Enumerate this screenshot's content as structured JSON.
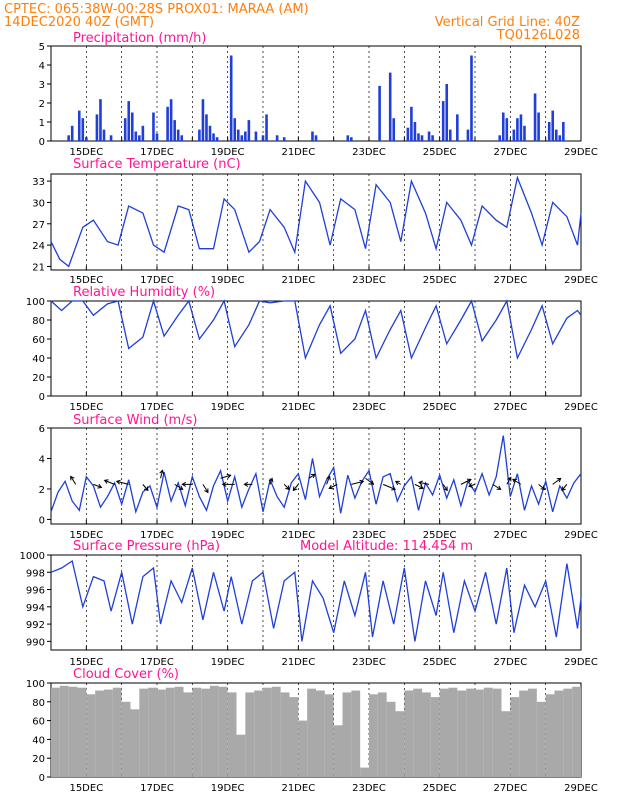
{
  "header": {
    "line1_left": "CPTEC:   065:38W-00:28S   PROX01: MARAA (AM)",
    "line2_left": "14DEC2020 40Z (GMT)",
    "line2_right": "Vertical Grid Line: 40Z",
    "line3_right": "TQ0126L028"
  },
  "colors": {
    "header": "#ff7f0e",
    "panel_title": "#ff1493",
    "series": "#1f3fd8",
    "cloud": "#a9a9a9",
    "arrows": "#000000"
  },
  "chart_data": [
    {
      "type": "bar",
      "title": "Precipitation (mm/h)",
      "xlabel": "",
      "ylabel": "",
      "x_ticks": [
        "15DEC",
        "17DEC",
        "19DEC",
        "21DEC",
        "23DEC",
        "25DEC",
        "27DEC",
        "29DEC"
      ],
      "y_ticks": [
        "0",
        "1",
        "2",
        "3",
        "4",
        "5"
      ],
      "ylim": [
        0,
        5
      ],
      "grid": "vertical dashed",
      "x": [
        14.5,
        14.6,
        14.8,
        14.9,
        15.0,
        15.3,
        15.4,
        15.5,
        15.7,
        16.1,
        16.2,
        16.3,
        16.4,
        16.5,
        16.6,
        16.9,
        17.0,
        17.3,
        17.4,
        17.5,
        17.6,
        17.7,
        18.2,
        18.3,
        18.4,
        18.5,
        18.6,
        18.7,
        19.1,
        19.2,
        19.3,
        19.4,
        19.5,
        19.6,
        19.8,
        20.0,
        20.1,
        20.4,
        20.6,
        21.4,
        21.5,
        22.4,
        22.5,
        23.3,
        23.6,
        23.7,
        24.1,
        24.2,
        24.3,
        24.4,
        24.5,
        24.7,
        24.8,
        25.1,
        25.2,
        25.3,
        25.5,
        25.8,
        25.9,
        26.7,
        26.8,
        26.9,
        27.1,
        27.2,
        27.3,
        27.4,
        27.7,
        27.8,
        28.1,
        28.2,
        28.3,
        28.4,
        28.5
      ],
      "values": [
        0.3,
        0.8,
        1.6,
        1.2,
        0.2,
        1.4,
        2.2,
        0.6,
        0.3,
        1.2,
        2.1,
        1.5,
        0.5,
        0.3,
        0.8,
        1.5,
        0.4,
        1.8,
        2.2,
        1.1,
        0.6,
        0.3,
        0.6,
        2.2,
        1.4,
        0.8,
        0.4,
        0.2,
        4.5,
        1.2,
        0.6,
        0.3,
        0.5,
        1.1,
        0.5,
        0.3,
        1.4,
        0.3,
        0.2,
        0.5,
        0.3,
        0.3,
        0.2,
        2.9,
        3.6,
        1.2,
        0.7,
        1.8,
        1.0,
        0.4,
        0.3,
        0.5,
        0.3,
        2.1,
        3.0,
        0.6,
        1.4,
        0.6,
        4.5,
        0.3,
        1.5,
        1.2,
        0.6,
        1.2,
        1.4,
        0.8,
        2.5,
        1.5,
        1.0,
        1.6,
        0.6,
        0.3,
        1.0
      ]
    },
    {
      "type": "line",
      "title": "Surface Temperature (nC)",
      "xlabel": "",
      "ylabel": "",
      "x_ticks": [
        "15DEC",
        "17DEC",
        "19DEC",
        "21DEC",
        "23DEC",
        "25DEC",
        "27DEC",
        "29DEC"
      ],
      "y_ticks": [
        "21",
        "24",
        "27",
        "30",
        "33"
      ],
      "ylim": [
        20.5,
        34
      ],
      "grid": "vertical dashed",
      "x": [
        14.0,
        14.25,
        14.5,
        14.9,
        15.2,
        15.6,
        15.9,
        16.2,
        16.6,
        16.9,
        17.2,
        17.6,
        17.9,
        18.2,
        18.6,
        18.9,
        19.2,
        19.6,
        19.9,
        20.2,
        20.6,
        20.9,
        21.2,
        21.6,
        21.9,
        22.2,
        22.6,
        22.9,
        23.2,
        23.6,
        23.9,
        24.2,
        24.6,
        24.9,
        25.2,
        25.6,
        25.9,
        26.2,
        26.6,
        26.9,
        27.2,
        27.6,
        27.9,
        28.2,
        28.6,
        28.9,
        29.0
      ],
      "values": [
        24.5,
        22.0,
        21.0,
        26.5,
        27.5,
        24.5,
        24.0,
        29.5,
        28.5,
        24.0,
        23.0,
        29.5,
        29.0,
        23.5,
        23.5,
        30.5,
        29.0,
        23.0,
        24.5,
        29.0,
        26.5,
        23.0,
        33.0,
        30.0,
        24.0,
        30.5,
        29.0,
        23.5,
        32.5,
        30.0,
        24.5,
        33.0,
        28.5,
        23.5,
        30.0,
        27.5,
        24.0,
        29.5,
        27.5,
        26.5,
        33.5,
        28.5,
        24.0,
        30.0,
        28.0,
        24.0,
        28.5
      ]
    },
    {
      "type": "line",
      "title": "Relative Humidity (%)",
      "xlabel": "",
      "ylabel": "",
      "x_ticks": [
        "15DEC",
        "17DEC",
        "19DEC",
        "21DEC",
        "23DEC",
        "25DEC",
        "27DEC",
        "29DEC"
      ],
      "y_ticks": [
        "0",
        "20",
        "40",
        "60",
        "80",
        "100"
      ],
      "ylim": [
        0,
        100
      ],
      "grid": "vertical dashed",
      "x": [
        14.0,
        14.3,
        14.6,
        14.9,
        15.2,
        15.6,
        15.9,
        16.2,
        16.6,
        16.9,
        17.2,
        17.6,
        17.9,
        18.2,
        18.6,
        18.9,
        19.2,
        19.6,
        19.9,
        20.2,
        20.6,
        20.9,
        21.2,
        21.6,
        21.9,
        22.2,
        22.6,
        22.9,
        23.2,
        23.6,
        23.9,
        24.2,
        24.6,
        24.9,
        25.2,
        25.6,
        25.9,
        26.2,
        26.6,
        26.9,
        27.2,
        27.6,
        27.9,
        28.2,
        28.6,
        28.9,
        29.0
      ],
      "values": [
        100,
        90,
        100,
        100,
        85,
        97,
        100,
        50,
        62,
        100,
        63,
        85,
        100,
        60,
        80,
        100,
        52,
        75,
        100,
        98,
        100,
        100,
        40,
        75,
        95,
        45,
        60,
        90,
        40,
        70,
        90,
        40,
        72,
        95,
        55,
        80,
        100,
        58,
        80,
        100,
        40,
        70,
        95,
        55,
        82,
        90,
        85
      ]
    },
    {
      "type": "line",
      "title": "Surface Wind (m/s)",
      "xlabel": "",
      "ylabel": "",
      "x_ticks": [
        "15DEC",
        "17DEC",
        "19DEC",
        "21DEC",
        "23DEC",
        "25DEC",
        "27DEC",
        "29DEC"
      ],
      "y_ticks": [
        "0",
        "2",
        "4",
        "6"
      ],
      "ylim": [
        -0.3,
        6
      ],
      "grid": "vertical dashed",
      "x": [
        14.0,
        14.2,
        14.4,
        14.6,
        14.8,
        15.0,
        15.2,
        15.4,
        15.6,
        15.8,
        16.0,
        16.2,
        16.4,
        16.6,
        16.8,
        17.0,
        17.2,
        17.4,
        17.6,
        17.8,
        18.0,
        18.2,
        18.4,
        18.6,
        18.8,
        19.0,
        19.2,
        19.4,
        19.6,
        19.8,
        20.0,
        20.2,
        20.4,
        20.6,
        20.8,
        21.0,
        21.2,
        21.4,
        21.6,
        21.8,
        22.0,
        22.2,
        22.4,
        22.6,
        22.8,
        23.0,
        23.2,
        23.4,
        23.6,
        23.8,
        24.0,
        24.2,
        24.4,
        24.6,
        24.8,
        25.0,
        25.2,
        25.4,
        25.6,
        25.8,
        26.0,
        26.2,
        26.4,
        26.6,
        26.8,
        27.0,
        27.2,
        27.4,
        27.6,
        27.8,
        28.0,
        28.2,
        28.4,
        28.6,
        28.8,
        29.0
      ],
      "values": [
        0.5,
        1.8,
        2.5,
        1.2,
        0.6,
        2.8,
        2.2,
        0.8,
        1.5,
        2.4,
        1.0,
        2.6,
        0.5,
        1.8,
        2.2,
        0.8,
        3.1,
        1.2,
        2.4,
        0.9,
        2.8,
        1.5,
        0.6,
        2.2,
        3.2,
        1.2,
        2.8,
        0.8,
        2.0,
        3.0,
        0.5,
        2.6,
        1.5,
        0.8,
        2.4,
        3.0,
        1.3,
        4.0,
        1.5,
        2.6,
        3.4,
        0.4,
        2.9,
        1.4,
        2.5,
        3.2,
        1.0,
        2.8,
        3.0,
        1.2,
        2.2,
        2.8,
        0.6,
        2.4,
        1.6,
        2.9,
        1.4,
        2.6,
        0.9,
        2.5,
        1.8,
        3.0,
        1.6,
        2.8,
        5.5,
        1.5,
        3.0,
        0.6,
        2.2,
        1.0,
        2.5,
        0.5,
        2.2,
        1.4,
        2.4,
        3.0
      ]
    },
    {
      "type": "line",
      "title": "Surface Pressure (hPa)",
      "subtitle": "Model Altitude: 114.454 m",
      "xlabel": "",
      "ylabel": "",
      "x_ticks": [
        "15DEC",
        "17DEC",
        "19DEC",
        "21DEC",
        "23DEC",
        "25DEC",
        "27DEC",
        "29DEC"
      ],
      "y_ticks": [
        "990",
        "992",
        "994",
        "996",
        "998",
        "1000"
      ],
      "ylim": [
        989,
        1000
      ],
      "grid": "vertical dashed",
      "x": [
        14.0,
        14.3,
        14.6,
        14.9,
        15.2,
        15.5,
        15.7,
        16.0,
        16.3,
        16.6,
        16.9,
        17.1,
        17.4,
        17.7,
        18.0,
        18.3,
        18.6,
        18.9,
        19.1,
        19.4,
        19.7,
        20.0,
        20.3,
        20.6,
        20.9,
        21.1,
        21.4,
        21.7,
        22.0,
        22.3,
        22.6,
        22.9,
        23.1,
        23.4,
        23.7,
        24.0,
        24.3,
        24.6,
        24.9,
        25.1,
        25.4,
        25.7,
        26.0,
        26.3,
        26.6,
        26.9,
        27.1,
        27.4,
        27.7,
        28.0,
        28.3,
        28.6,
        28.9,
        29.0
      ],
      "values": [
        998.0,
        998.5,
        999.3,
        994.0,
        997.5,
        997.0,
        993.5,
        998.0,
        992.0,
        997.5,
        998.5,
        992.0,
        997.0,
        994.5,
        998.5,
        992.5,
        998.0,
        993.5,
        997.5,
        992.0,
        997.0,
        998.0,
        991.5,
        997.0,
        998.0,
        990.0,
        997.0,
        995.0,
        991.0,
        997.0,
        993.0,
        998.0,
        990.5,
        997.0,
        992.0,
        998.5,
        990.0,
        997.0,
        993.0,
        998.0,
        991.0,
        997.0,
        993.5,
        998.0,
        992.0,
        998.5,
        991.0,
        996.5,
        994.0,
        997.0,
        990.5,
        999.0,
        991.5,
        995.0
      ]
    },
    {
      "type": "bar",
      "title": "Cloud Cover (%)",
      "xlabel": "",
      "ylabel": "",
      "x_ticks": [
        "15DEC",
        "17DEC",
        "19DEC",
        "21DEC",
        "23DEC",
        "25DEC",
        "27DEC",
        "29DEC"
      ],
      "y_ticks": [
        "0",
        "20",
        "40",
        "60",
        "80",
        "100"
      ],
      "ylim": [
        0,
        100
      ],
      "grid": "vertical dashed",
      "x": [
        14.0,
        14.25,
        14.5,
        14.75,
        15.0,
        15.25,
        15.5,
        15.75,
        16.0,
        16.25,
        16.5,
        16.75,
        17.0,
        17.25,
        17.5,
        17.75,
        18.0,
        18.25,
        18.5,
        18.75,
        19.0,
        19.25,
        19.5,
        19.75,
        20.0,
        20.25,
        20.5,
        20.75,
        21.0,
        21.25,
        21.5,
        21.75,
        22.0,
        22.25,
        22.5,
        22.75,
        23.0,
        23.25,
        23.5,
        23.75,
        24.0,
        24.25,
        24.5,
        24.75,
        25.0,
        25.25,
        25.5,
        25.75,
        26.0,
        26.25,
        26.5,
        26.75,
        27.0,
        27.25,
        27.5,
        27.75,
        28.0,
        28.25,
        28.5,
        28.75,
        29.0
      ],
      "values": [
        95,
        97,
        96,
        95,
        88,
        92,
        93,
        95,
        80,
        72,
        94,
        95,
        93,
        95,
        96,
        90,
        95,
        94,
        97,
        96,
        90,
        45,
        90,
        92,
        95,
        96,
        90,
        85,
        60,
        94,
        92,
        88,
        55,
        90,
        92,
        10,
        88,
        90,
        80,
        70,
        92,
        94,
        90,
        85,
        94,
        95,
        92,
        94,
        93,
        95,
        94,
        70,
        85,
        92,
        94,
        80,
        88,
        92,
        94,
        96,
        95
      ]
    }
  ],
  "wind_vectors": {
    "x": [
      14.7,
      15.2,
      15.8,
      16.2,
      16.6,
      17.1,
      17.5,
      18.0,
      18.3,
      18.8,
      19.2,
      19.7,
      20.2,
      20.6,
      21.0,
      21.3,
      21.8,
      22.1,
      22.5,
      22.9,
      23.4,
      23.9,
      24.3,
      24.7,
      25.1,
      25.6,
      26.0,
      26.5,
      26.9,
      27.3,
      27.8,
      28.2,
      28.6
    ],
    "u": [
      -0.5,
      0.8,
      -1.0,
      -1.2,
      0.5,
      0.2,
      0.8,
      -1.0,
      0.5,
      1.0,
      -1.2,
      -0.8,
      0.2,
      0.5,
      -0.5,
      0.6,
      0.3,
      -0.8,
      1.2,
      0.8,
      1.2,
      -0.5,
      0.8,
      -1.0,
      0.4,
      1.0,
      -0.6,
      0.8,
      0.4,
      -0.8,
      0.6,
      0.8,
      -0.5
    ],
    "v": [
      0.8,
      -0.3,
      0.4,
      0.3,
      -0.6,
      0.8,
      -0.5,
      0.0,
      -0.8,
      0.3,
      0.0,
      0.0,
      0.6,
      -0.5,
      -0.6,
      0.4,
      0.8,
      -0.4,
      0.3,
      -0.6,
      -0.5,
      0.3,
      -0.4,
      0.2,
      -0.6,
      0.5,
      -0.2,
      -0.5,
      0.7,
      0.5,
      -0.5,
      0.6,
      -0.6
    ]
  }
}
